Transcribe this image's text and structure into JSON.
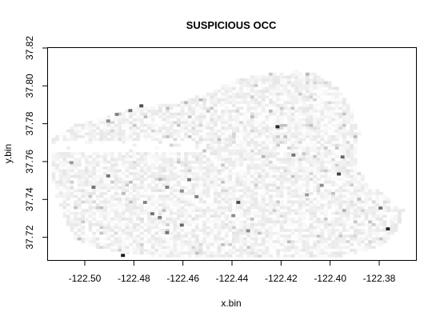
{
  "chart_data": {
    "type": "heatmap",
    "title": "SUSPICIOUS OCC",
    "xlabel": "x.bin",
    "ylabel": "y.bin",
    "xlim": [
      -122.515,
      -122.365
    ],
    "ylim": [
      37.708,
      37.82
    ],
    "xticks": [
      -122.5,
      -122.48,
      -122.46,
      -122.44,
      -122.42,
      -122.4,
      -122.38
    ],
    "xtick_labels": [
      "-122.50",
      "-122.48",
      "-122.46",
      "-122.44",
      "-122.42",
      "-122.40",
      "-122.38"
    ],
    "yticks": [
      37.72,
      37.74,
      37.76,
      37.78,
      37.8,
      37.82
    ],
    "ytick_labels": [
      "37.72",
      "37.74",
      "37.76",
      "37.78",
      "37.80",
      "37.82"
    ],
    "grid": false,
    "legend": "none",
    "color_scale": [
      "#ffffff",
      "#000000"
    ],
    "bin_size_deg": 0.0015,
    "region_polygon": [
      [
        -122.513,
        37.772
      ],
      [
        -122.505,
        37.779
      ],
      [
        -122.49,
        37.784
      ],
      [
        -122.478,
        37.789
      ],
      [
        -122.462,
        37.791
      ],
      [
        -122.45,
        37.797
      ],
      [
        -122.44,
        37.803
      ],
      [
        -122.428,
        37.806
      ],
      [
        -122.415,
        37.808
      ],
      [
        -122.405,
        37.806
      ],
      [
        -122.398,
        37.8
      ],
      [
        -122.392,
        37.79
      ],
      [
        -122.388,
        37.776
      ],
      [
        -122.39,
        37.762
      ],
      [
        -122.385,
        37.748
      ],
      [
        -122.377,
        37.742
      ],
      [
        -122.37,
        37.735
      ],
      [
        -122.372,
        37.725
      ],
      [
        -122.378,
        37.716
      ],
      [
        -122.388,
        37.712
      ],
      [
        -122.4,
        37.709
      ],
      [
        -122.42,
        37.709
      ],
      [
        -122.44,
        37.709
      ],
      [
        -122.46,
        37.709
      ],
      [
        -122.48,
        37.711
      ],
      [
        -122.497,
        37.715
      ],
      [
        -122.505,
        37.72
      ],
      [
        -122.51,
        37.735
      ],
      [
        -122.513,
        37.75
      ],
      [
        -122.513,
        37.772
      ]
    ],
    "empty_band": {
      "x": [
        -122.513,
        -122.455
      ],
      "y": [
        37.7655,
        37.7705
      ]
    },
    "hotspots": [
      {
        "x": -122.477,
        "y": 37.7895,
        "v": 0.7
      },
      {
        "x": -122.4815,
        "y": 37.787,
        "v": 0.55
      },
      {
        "x": -122.487,
        "y": 37.785,
        "v": 0.5
      },
      {
        "x": -122.4905,
        "y": 37.7815,
        "v": 0.45
      },
      {
        "x": -122.4215,
        "y": 37.7785,
        "v": 0.85
      },
      {
        "x": -122.415,
        "y": 37.7635,
        "v": 0.55
      },
      {
        "x": -122.395,
        "y": 37.7625,
        "v": 0.6
      },
      {
        "x": -122.3965,
        "y": 37.7535,
        "v": 0.75
      },
      {
        "x": -122.4905,
        "y": 37.7525,
        "v": 0.55
      },
      {
        "x": -122.4965,
        "y": 37.7465,
        "v": 0.55
      },
      {
        "x": -122.4665,
        "y": 37.7465,
        "v": 0.5
      },
      {
        "x": -122.4575,
        "y": 37.7505,
        "v": 0.55
      },
      {
        "x": -122.4605,
        "y": 37.7445,
        "v": 0.45
      },
      {
        "x": -122.4545,
        "y": 37.7415,
        "v": 0.5
      },
      {
        "x": -122.4375,
        "y": 37.7385,
        "v": 0.7
      },
      {
        "x": -122.4755,
        "y": 37.7385,
        "v": 0.5
      },
      {
        "x": -122.4725,
        "y": 37.7325,
        "v": 0.55
      },
      {
        "x": -122.4695,
        "y": 37.7305,
        "v": 0.5
      },
      {
        "x": -122.4605,
        "y": 37.7265,
        "v": 0.6
      },
      {
        "x": -122.4665,
        "y": 37.7225,
        "v": 0.55
      },
      {
        "x": -122.4395,
        "y": 37.7315,
        "v": 0.45
      },
      {
        "x": -122.4035,
        "y": 37.7475,
        "v": 0.45
      },
      {
        "x": -122.3795,
        "y": 37.7355,
        "v": 0.55
      },
      {
        "x": -122.3765,
        "y": 37.7245,
        "v": 0.85
      },
      {
        "x": -122.4845,
        "y": 37.7105,
        "v": 0.9
      },
      {
        "x": -122.4095,
        "y": 37.7425,
        "v": 0.4
      },
      {
        "x": -122.5055,
        "y": 37.7595,
        "v": 0.4
      },
      {
        "x": -122.4335,
        "y": 37.7235,
        "v": 0.45
      }
    ]
  }
}
